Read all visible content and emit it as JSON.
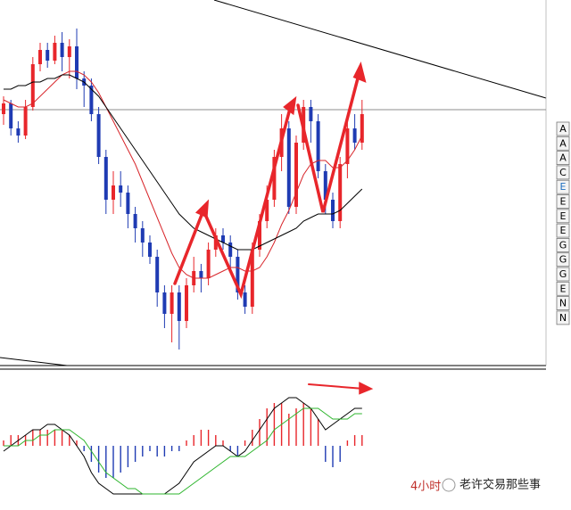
{
  "chart_data": [
    {
      "type": "candlestick",
      "ylim": [
        0,
        100
      ],
      "up_color": "#e8262b",
      "down_color": "#1f3bb3",
      "open": [
        68,
        71,
        64,
        62,
        70,
        82,
        86,
        83,
        88,
        84,
        87,
        78,
        76,
        68,
        56,
        44,
        48,
        46,
        40,
        36,
        32,
        28,
        18,
        12,
        18,
        10,
        20,
        24,
        22,
        30,
        34,
        32,
        28,
        18,
        14,
        30,
        38,
        44,
        56,
        64,
        42,
        60,
        70,
        66,
        52,
        44,
        38,
        54,
        64,
        60
      ],
      "close": [
        71,
        64,
        62,
        70,
        82,
        86,
        83,
        88,
        84,
        87,
        78,
        76,
        68,
        56,
        44,
        48,
        46,
        40,
        36,
        32,
        28,
        18,
        12,
        18,
        10,
        20,
        24,
        22,
        30,
        34,
        32,
        28,
        18,
        14,
        30,
        38,
        44,
        56,
        64,
        42,
        60,
        70,
        66,
        52,
        44,
        38,
        54,
        64,
        60,
        68
      ],
      "high": [
        73,
        72,
        66,
        72,
        84,
        88,
        88,
        90,
        91,
        89,
        92,
        80,
        78,
        70,
        58,
        52,
        52,
        48,
        42,
        38,
        34,
        30,
        20,
        20,
        20,
        22,
        28,
        26,
        32,
        36,
        36,
        34,
        30,
        20,
        32,
        40,
        48,
        58,
        68,
        66,
        62,
        72,
        72,
        68,
        54,
        46,
        56,
        66,
        68,
        72
      ],
      "low": [
        65,
        62,
        60,
        61,
        69,
        80,
        81,
        82,
        80,
        78,
        75,
        70,
        66,
        54,
        40,
        40,
        42,
        36,
        32,
        28,
        26,
        14,
        8,
        4,
        2,
        8,
        18,
        18,
        20,
        28,
        30,
        24,
        16,
        12,
        12,
        28,
        36,
        42,
        52,
        40,
        40,
        58,
        60,
        50,
        40,
        36,
        36,
        50,
        58,
        58
      ],
      "series": [
        {
          "color": "#d8262b",
          "values": [
            72,
            71,
            70,
            70,
            71,
            73,
            75,
            77,
            79,
            80,
            80,
            79,
            77,
            74,
            70,
            66,
            62,
            58,
            54,
            49,
            44,
            39,
            34,
            29,
            25,
            23,
            22,
            22,
            22,
            23,
            24,
            25,
            25,
            24,
            24,
            25,
            28,
            32,
            37,
            41,
            46,
            51,
            54,
            55,
            55,
            53,
            53,
            55,
            58,
            62
          ]
        },
        {
          "color": "#000000",
          "values": [
            75,
            75,
            76,
            76,
            77,
            77,
            78,
            78,
            79,
            79,
            78,
            77,
            75,
            73,
            70,
            67,
            64,
            61,
            58,
            55,
            52,
            49,
            46,
            43,
            40,
            38,
            36,
            35,
            34,
            33,
            32,
            31,
            30,
            30,
            30,
            31,
            32,
            33,
            34,
            35,
            36,
            38,
            39,
            40,
            40,
            40,
            41,
            43,
            45,
            47
          ]
        }
      ],
      "tabs": [
        "A",
        "A",
        "A",
        "C",
        "E",
        "E",
        "E",
        "E",
        "G",
        "G",
        "G",
        "E",
        "N",
        "N"
      ]
    },
    {
      "type": "macd",
      "ylim": [
        -10,
        10
      ],
      "up_color": "#e8262b",
      "down_color": "#1f3bb3",
      "histogram": [
        1,
        2,
        2,
        2,
        3,
        3,
        3,
        3,
        3,
        2,
        1,
        -1,
        -3,
        -5,
        -6,
        -6,
        -5,
        -4,
        -3,
        -2,
        -1,
        -2,
        -2,
        -1,
        -1,
        1,
        2,
        3,
        3,
        2,
        1,
        -1,
        -2,
        1,
        3,
        5,
        7,
        8,
        8,
        6,
        7,
        8,
        7,
        5,
        -3,
        -4,
        -3,
        1,
        2,
        2
      ],
      "series": [
        {
          "color": "#000000",
          "values": [
            -1,
            0,
            1,
            2,
            3,
            3,
            4,
            4,
            3,
            2,
            0,
            -2,
            -5,
            -7,
            -8,
            -9,
            -9,
            -9,
            -9,
            -9,
            -9,
            -9,
            -9,
            -8,
            -7,
            -5,
            -3,
            -2,
            -1,
            0,
            0,
            -1,
            -2,
            -1,
            1,
            3,
            5,
            7,
            8,
            9,
            9,
            8,
            7,
            5,
            3,
            4,
            5,
            6,
            7,
            7
          ]
        },
        {
          "color": "#2db52d",
          "values": [
            0,
            0,
            0,
            1,
            1,
            2,
            2,
            3,
            3,
            3,
            2,
            1,
            -1,
            -3,
            -5,
            -6,
            -7,
            -8,
            -8,
            -9,
            -9,
            -9,
            -9,
            -9,
            -9,
            -8,
            -7,
            -6,
            -5,
            -4,
            -3,
            -2,
            -2,
            -2,
            -1,
            0,
            1,
            3,
            4,
            5,
            6,
            7,
            7,
            7,
            6,
            5,
            5,
            5,
            6,
            6
          ]
        }
      ],
      "watermark_timeframe": "4小时",
      "watermark": "老许交易那些事"
    }
  ]
}
